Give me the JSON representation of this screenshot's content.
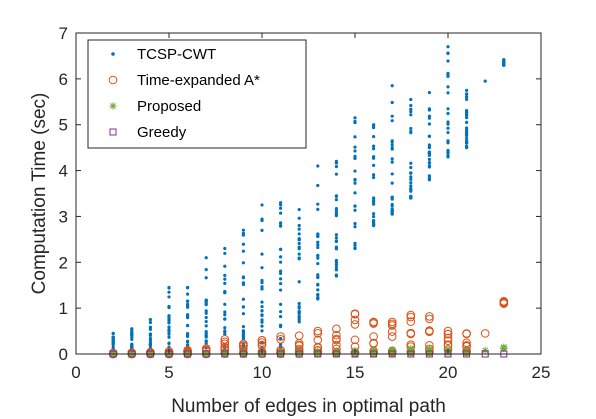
{
  "chart_data": {
    "type": "scatter",
    "xlabel": "Number of edges in optimal path",
    "ylabel": "Computation Time (sec)",
    "xlim": [
      0,
      25
    ],
    "ylim": [
      0,
      7
    ],
    "xticks": [
      0,
      5,
      10,
      15,
      20,
      25
    ],
    "yticks": [
      0,
      1,
      2,
      3,
      4,
      5,
      6,
      7
    ],
    "grid": false,
    "legend_position": "top-left",
    "series": [
      {
        "name": "TCSP-CWT",
        "marker": "dot",
        "color": "#0072BD",
        "ranges": [
          {
            "x": 2,
            "min": 0.02,
            "max": 0.45
          },
          {
            "x": 3,
            "min": 0.02,
            "max": 0.55
          },
          {
            "x": 4,
            "min": 0.03,
            "max": 0.75
          },
          {
            "x": 5,
            "min": 0.04,
            "max": 1.45
          },
          {
            "x": 6,
            "min": 0.05,
            "max": 1.45
          },
          {
            "x": 7,
            "min": 0.06,
            "max": 2.1
          },
          {
            "x": 8,
            "min": 0.08,
            "max": 2.3
          },
          {
            "x": 9,
            "min": 0.1,
            "max": 2.7
          },
          {
            "x": 10,
            "min": 0.12,
            "max": 3.25
          },
          {
            "x": 11,
            "min": 0.15,
            "max": 3.3
          },
          {
            "x": 12,
            "min": 0.7,
            "max": 3.15
          },
          {
            "x": 13,
            "min": 1.2,
            "max": 4.1
          },
          {
            "x": 14,
            "min": 1.7,
            "max": 4.2
          },
          {
            "x": 15,
            "min": 2.3,
            "max": 5.15
          },
          {
            "x": 16,
            "min": 2.8,
            "max": 5.0
          },
          {
            "x": 17,
            "min": 3.05,
            "max": 5.85
          },
          {
            "x": 18,
            "min": 3.4,
            "max": 5.55
          },
          {
            "x": 19,
            "min": 3.8,
            "max": 5.7
          },
          {
            "x": 20,
            "min": 4.3,
            "max": 6.7
          },
          {
            "x": 21,
            "min": 4.5,
            "max": 5.75
          },
          {
            "x": 22,
            "min": 5.95,
            "max": 5.95
          },
          {
            "x": 23,
            "min": 6.3,
            "max": 6.42
          }
        ]
      },
      {
        "name": "Time-expanded A*",
        "marker": "circle",
        "color": "#D95319",
        "ranges": [
          {
            "x": 2,
            "min": 0.0,
            "max": 0.02
          },
          {
            "x": 3,
            "min": 0.0,
            "max": 0.03
          },
          {
            "x": 4,
            "min": 0.0,
            "max": 0.04
          },
          {
            "x": 5,
            "min": 0.0,
            "max": 0.06
          },
          {
            "x": 6,
            "min": 0.0,
            "max": 0.08
          },
          {
            "x": 7,
            "min": 0.0,
            "max": 0.12
          },
          {
            "x": 8,
            "min": 0.01,
            "max": 0.32
          },
          {
            "x": 9,
            "min": 0.01,
            "max": 0.22
          },
          {
            "x": 10,
            "min": 0.01,
            "max": 0.3
          },
          {
            "x": 11,
            "min": 0.01,
            "max": 0.38
          },
          {
            "x": 12,
            "min": 0.01,
            "max": 0.4
          },
          {
            "x": 13,
            "min": 0.02,
            "max": 0.5
          },
          {
            "x": 14,
            "min": 0.02,
            "max": 0.55
          },
          {
            "x": 15,
            "min": 0.03,
            "max": 0.88
          },
          {
            "x": 16,
            "min": 0.03,
            "max": 0.7
          },
          {
            "x": 17,
            "min": 0.04,
            "max": 0.7
          },
          {
            "x": 18,
            "min": 0.05,
            "max": 0.85
          },
          {
            "x": 19,
            "min": 0.05,
            "max": 0.82
          },
          {
            "x": 20,
            "min": 0.1,
            "max": 0.5
          },
          {
            "x": 21,
            "min": 0.05,
            "max": 0.45
          },
          {
            "x": 22,
            "min": 0.45,
            "max": 0.45
          },
          {
            "x": 23,
            "min": 1.1,
            "max": 1.15
          }
        ]
      },
      {
        "name": "Proposed",
        "marker": "asterisk",
        "color": "#77AC30",
        "ranges": [
          {
            "x": 2,
            "min": 0.0,
            "max": 0.01
          },
          {
            "x": 3,
            "min": 0.0,
            "max": 0.01
          },
          {
            "x": 4,
            "min": 0.0,
            "max": 0.01
          },
          {
            "x": 5,
            "min": 0.0,
            "max": 0.02
          },
          {
            "x": 6,
            "min": 0.0,
            "max": 0.02
          },
          {
            "x": 7,
            "min": 0.0,
            "max": 0.02
          },
          {
            "x": 8,
            "min": 0.0,
            "max": 0.03
          },
          {
            "x": 9,
            "min": 0.0,
            "max": 0.03
          },
          {
            "x": 10,
            "min": 0.0,
            "max": 0.04
          },
          {
            "x": 11,
            "min": 0.0,
            "max": 0.05
          },
          {
            "x": 12,
            "min": 0.0,
            "max": 0.05
          },
          {
            "x": 13,
            "min": 0.0,
            "max": 0.06
          },
          {
            "x": 14,
            "min": 0.0,
            "max": 0.07
          },
          {
            "x": 15,
            "min": 0.01,
            "max": 0.08
          },
          {
            "x": 16,
            "min": 0.01,
            "max": 0.09
          },
          {
            "x": 17,
            "min": 0.01,
            "max": 0.1
          },
          {
            "x": 18,
            "min": 0.01,
            "max": 0.12
          },
          {
            "x": 19,
            "min": 0.01,
            "max": 0.12
          },
          {
            "x": 20,
            "min": 0.02,
            "max": 0.1
          },
          {
            "x": 21,
            "min": 0.02,
            "max": 0.08
          },
          {
            "x": 22,
            "min": 0.08,
            "max": 0.08
          },
          {
            "x": 23,
            "min": 0.12,
            "max": 0.15
          }
        ]
      },
      {
        "name": "Greedy",
        "marker": "square",
        "color": "#7E2F8E",
        "ranges": [
          {
            "x": 2,
            "min": 0.0,
            "max": 0.0
          },
          {
            "x": 3,
            "min": 0.0,
            "max": 0.0
          },
          {
            "x": 4,
            "min": 0.0,
            "max": 0.0
          },
          {
            "x": 5,
            "min": 0.0,
            "max": 0.0
          },
          {
            "x": 6,
            "min": 0.0,
            "max": 0.0
          },
          {
            "x": 7,
            "min": 0.0,
            "max": 0.0
          },
          {
            "x": 8,
            "min": 0.0,
            "max": 0.0
          },
          {
            "x": 9,
            "min": 0.0,
            "max": 0.0
          },
          {
            "x": 10,
            "min": 0.0,
            "max": 0.0
          },
          {
            "x": 11,
            "min": 0.0,
            "max": 0.0
          },
          {
            "x": 12,
            "min": 0.0,
            "max": 0.0
          },
          {
            "x": 13,
            "min": 0.0,
            "max": 0.0
          },
          {
            "x": 14,
            "min": 0.0,
            "max": 0.0
          },
          {
            "x": 15,
            "min": 0.0,
            "max": 0.0
          },
          {
            "x": 16,
            "min": 0.0,
            "max": 0.0
          },
          {
            "x": 17,
            "min": 0.0,
            "max": 0.0
          },
          {
            "x": 18,
            "min": 0.0,
            "max": 0.0
          },
          {
            "x": 19,
            "min": 0.0,
            "max": 0.0
          },
          {
            "x": 20,
            "min": 0.0,
            "max": 0.0
          },
          {
            "x": 21,
            "min": 0.0,
            "max": 0.0
          },
          {
            "x": 22,
            "min": 0.0,
            "max": 0.0
          },
          {
            "x": 23,
            "min": 0.0,
            "max": 0.0
          }
        ]
      }
    ]
  }
}
